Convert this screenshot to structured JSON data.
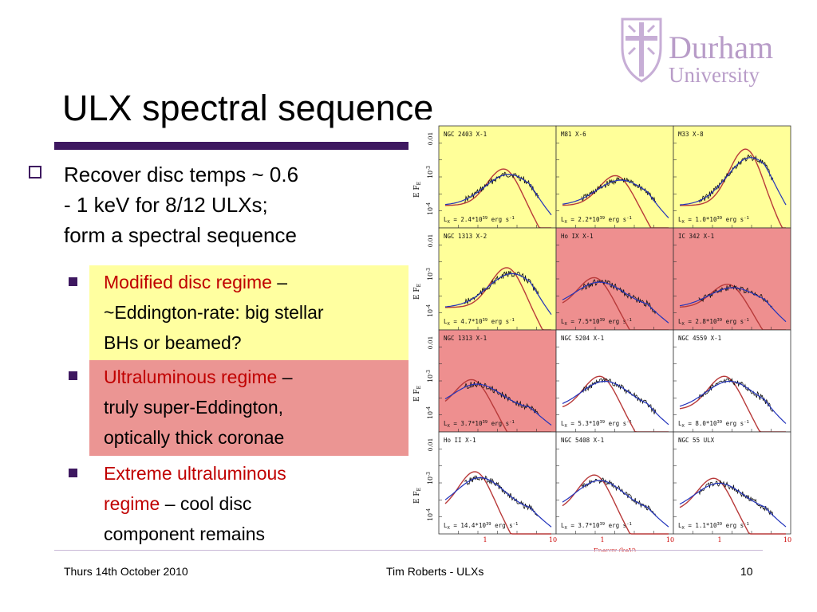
{
  "logo": {
    "name": "Durham",
    "sub": "University"
  },
  "title": "ULX spectral sequence",
  "bullet1": {
    "line1": "Recover disc temps ~ 0.6",
    "line2": "- 1 keV for 8/12 ULXs;",
    "line3": "form a spectral sequence"
  },
  "sub1": {
    "highlight": "Modified disc regime",
    "rest1": " –",
    "line2": "~Eddington-rate: big stellar",
    "line3": "BHs or beamed?"
  },
  "sub2": {
    "highlight": "Ultraluminous regime",
    "rest1": " –",
    "line2": "truly super-Eddington,",
    "line3": "optically thick coronae"
  },
  "sub3": {
    "highlight1": "Extreme ultraluminous",
    "highlight2": "regime",
    "rest2": " – cool disc",
    "line3": "component remains"
  },
  "figure": {
    "panels": [
      {
        "name": "NGC 2403 X-1",
        "lum": "L",
        "lum_sub": "X",
        "lum_val": " = 2.4*10",
        "lum_exp": "39",
        "lum_unit": " erg s",
        "lum_unit_exp": "-1"
      },
      {
        "name": "M81 X-6",
        "lum": "L",
        "lum_sub": "X",
        "lum_val": " = 2.2*10",
        "lum_exp": "39",
        "lum_unit": " erg s",
        "lum_unit_exp": "-1"
      },
      {
        "name": "M33 X-8",
        "lum": "L",
        "lum_sub": "X",
        "lum_val": " = 1.0*10",
        "lum_exp": "39",
        "lum_unit": " erg s",
        "lum_unit_exp": "-1"
      },
      {
        "name": "NGC 1313 X-2",
        "lum": "L",
        "lum_sub": "X",
        "lum_val": " = 4.7*10",
        "lum_exp": "39",
        "lum_unit": " erg s",
        "lum_unit_exp": "-1"
      },
      {
        "name": "Ho IX X-1",
        "lum": "L",
        "lum_sub": "X",
        "lum_val": " = 7.5*10",
        "lum_exp": "39",
        "lum_unit": " erg s",
        "lum_unit_exp": "-1"
      },
      {
        "name": "IC 342 X-1",
        "lum": "L",
        "lum_sub": "X",
        "lum_val": " = 2.8*10",
        "lum_exp": "39",
        "lum_unit": " erg s",
        "lum_unit_exp": "-1"
      },
      {
        "name": "NGC 1313 X-1",
        "lum": "L",
        "lum_sub": "X",
        "lum_val": " = 3.7*10",
        "lum_exp": "39",
        "lum_unit": " erg s",
        "lum_unit_exp": "-1"
      },
      {
        "name": "NGC 5204 X-1",
        "lum": "L",
        "lum_sub": "X",
        "lum_val": " = 5.3*10",
        "lum_exp": "39",
        "lum_unit": " erg s",
        "lum_unit_exp": "-1"
      },
      {
        "name": "NGC 4559 X-1",
        "lum": "L",
        "lum_sub": "X",
        "lum_val": " = 8.0*10",
        "lum_exp": "39",
        "lum_unit": " erg s",
        "lum_unit_exp": "-1"
      },
      {
        "name": "Ho II X-1",
        "lum": "L",
        "lum_sub": "X",
        "lum_val": " = 14.4*10",
        "lum_exp": "39",
        "lum_unit": " erg s",
        "lum_unit_exp": "-1"
      },
      {
        "name": "NGC 5408 X-1",
        "lum": "L",
        "lum_sub": "X",
        "lum_val": " = 3.7*10",
        "lum_exp": "39",
        "lum_unit": " erg s",
        "lum_unit_exp": "-1"
      },
      {
        "name": "NGC 55 ULX",
        "lum": "L",
        "lum_sub": "X",
        "lum_val": " = 1.1*10",
        "lum_exp": "39",
        "lum_unit": " erg s",
        "lum_unit_exp": "-1"
      }
    ],
    "ylabel": "E F",
    "ylabel_sub": "E",
    "ytick_top": "0.01",
    "ytick_mid": "10",
    "ytick_mid_exp": "-3",
    "ytick_low": "10",
    "ytick_low_exp": "-4",
    "xtick_1": "1",
    "xtick_10": "10",
    "xlabel": "Energy (keV)",
    "colors": {
      "yellow": "#ffff99",
      "red": "#ee8f8f",
      "model_blue": "#2233bb",
      "model_red": "#b83a3a",
      "axis_label": "#cc0000"
    }
  },
  "footer": {
    "date": "Thurs 14th October 2010",
    "author": "Tim Roberts - ULXs",
    "page": "10"
  },
  "colors": {
    "accent": "#3e1860",
    "highlight_text": "#c00000",
    "yellow_box": "#ffffa0",
    "red_box": "#eb9593",
    "logo": "#b89cc8"
  }
}
